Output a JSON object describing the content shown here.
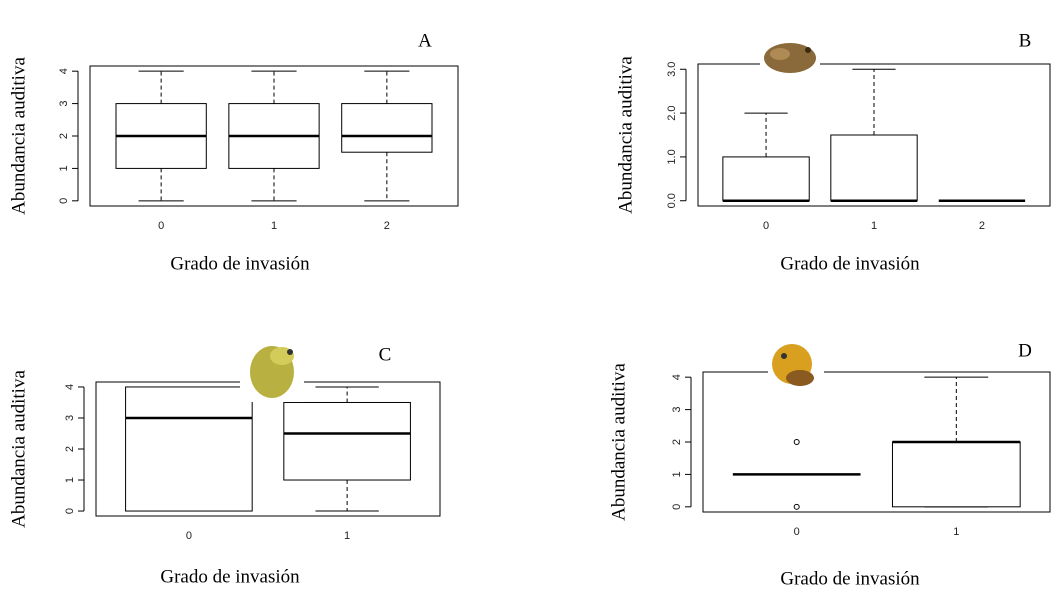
{
  "chart_data": [
    {
      "type": "boxplot",
      "title": "A",
      "xlabel": "Grado de invasión",
      "ylabel": "Abundancia auditiva",
      "categories": [
        "0",
        "1",
        "2"
      ],
      "boxes": [
        {
          "min": 0,
          "q1": 1,
          "median": 2,
          "q3": 3,
          "max": 4
        },
        {
          "min": 0,
          "q1": 1,
          "median": 2,
          "q3": 3,
          "max": 4
        },
        {
          "min": 0,
          "q1": 1.5,
          "median": 2,
          "q3": 3,
          "max": 4
        }
      ],
      "ylim": [
        -0.16,
        4.16
      ],
      "yticks": [
        0,
        1,
        2,
        3,
        4
      ],
      "color": "#000000"
    },
    {
      "type": "boxplot",
      "title": "B",
      "xlabel": "Grado de invasión",
      "ylabel": "Abundancia auditiva",
      "categories": [
        "0",
        "1",
        "2"
      ],
      "boxes": [
        {
          "min": 0,
          "q1": 0,
          "median": 0,
          "q3": 1,
          "max": 2
        },
        {
          "min": 0,
          "q1": 0,
          "median": 0,
          "q3": 1.5,
          "max": 3
        },
        {
          "min": 0,
          "q1": 0,
          "median": 0,
          "q3": 0,
          "max": 0
        }
      ],
      "ylim": [
        -0.12,
        3.12
      ],
      "yticks": [
        {
          "value": 0,
          "label": "0.0"
        },
        {
          "value": 1,
          "label": "1.0"
        },
        {
          "value": 2,
          "label": "2.0"
        },
        {
          "value": 3,
          "label": "3.0"
        }
      ],
      "color": "#000000"
    },
    {
      "type": "boxplot",
      "title": "C",
      "xlabel": "Grado de invasión",
      "ylabel": "Abundancia auditiva",
      "categories": [
        "0",
        "1"
      ],
      "boxes": [
        {
          "min": 0,
          "q1": 0,
          "median": 3,
          "q3": 4,
          "max": 4
        },
        {
          "min": 0,
          "q1": 1,
          "median": 2.5,
          "q3": 3.5,
          "max": 4
        }
      ],
      "ylim": [
        -0.16,
        4.16
      ],
      "yticks": [
        0,
        1,
        2,
        3,
        4
      ],
      "color": "#000000"
    },
    {
      "type": "boxplot",
      "title": "D",
      "xlabel": "Grado de invasión",
      "ylabel": "Abundancia auditiva",
      "categories": [
        "0",
        "1"
      ],
      "boxes": [
        {
          "min": 1,
          "q1": 1,
          "median": 1,
          "q3": 1,
          "max": 1,
          "outliers": [
            0,
            2
          ]
        },
        {
          "min": 0,
          "q1": 0,
          "median": 2,
          "q3": 2,
          "max": 4
        }
      ],
      "ylim": [
        -0.16,
        4.16
      ],
      "yticks": [
        0,
        1,
        2,
        3,
        4
      ],
      "color": "#000000"
    }
  ]
}
